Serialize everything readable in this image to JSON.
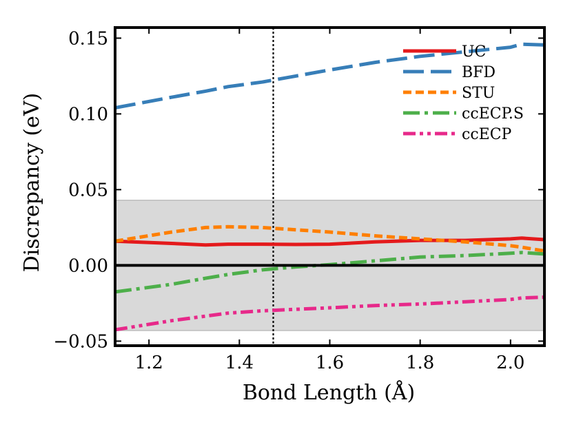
{
  "chart_data": {
    "type": "line",
    "title": "",
    "xlabel": "Bond Length (Å)",
    "ylabel": "Discrepancy (eV)",
    "xlim": [
      1.125,
      2.075
    ],
    "ylim": [
      -0.053,
      0.157
    ],
    "xticks": [
      1.2,
      1.4,
      1.6,
      1.8,
      2.0
    ],
    "xtick_labels": [
      "1.2",
      "1.4",
      "1.6",
      "1.8",
      "2.0"
    ],
    "yticks": [
      -0.05,
      0.0,
      0.05,
      0.1,
      0.15
    ],
    "ytick_labels": [
      "−0.05",
      "0.00",
      "0.05",
      "0.10",
      "0.15"
    ],
    "shaded_band": [
      -0.043,
      0.043
    ],
    "zero_line": 0.0,
    "vertical_reference_line": 1.475,
    "legend_position": "top-right",
    "x": [
      1.125,
      1.25,
      1.325,
      1.375,
      1.45,
      1.525,
      1.6,
      1.7,
      1.8,
      1.9,
      2.0,
      2.025,
      2.075
    ],
    "series": [
      {
        "name": "UC",
        "color": "#e41a1c",
        "dash": "solid",
        "values": [
          0.016,
          0.0145,
          0.0135,
          0.014,
          0.014,
          0.0138,
          0.014,
          0.0155,
          0.0165,
          0.0165,
          0.0175,
          0.018,
          0.017
        ]
      },
      {
        "name": "BFD",
        "color": "#377eb8",
        "dash": "longdash",
        "values": [
          0.104,
          0.111,
          0.115,
          0.118,
          0.121,
          0.125,
          0.129,
          0.134,
          0.138,
          0.141,
          0.144,
          0.146,
          0.1455
        ]
      },
      {
        "name": "STU",
        "color": "#ff7f00",
        "dash": "shortdash",
        "values": [
          0.016,
          0.022,
          0.025,
          0.0255,
          0.025,
          0.0235,
          0.022,
          0.0195,
          0.0175,
          0.0155,
          0.013,
          0.012,
          0.0095
        ]
      },
      {
        "name": "ccECP.S",
        "color": "#4daf4a",
        "dash": "dashdot",
        "values": [
          -0.0175,
          -0.0125,
          -0.0085,
          -0.006,
          -0.003,
          -0.001,
          0.0005,
          0.003,
          0.0055,
          0.0065,
          0.008,
          0.0085,
          0.0075
        ]
      },
      {
        "name": "ccECP",
        "color": "#e7298a",
        "dash": "dashdotdot",
        "values": [
          -0.0425,
          -0.0365,
          -0.0335,
          -0.0315,
          -0.03,
          -0.029,
          -0.028,
          -0.0265,
          -0.0255,
          -0.024,
          -0.0225,
          -0.0215,
          -0.021
        ]
      }
    ]
  }
}
